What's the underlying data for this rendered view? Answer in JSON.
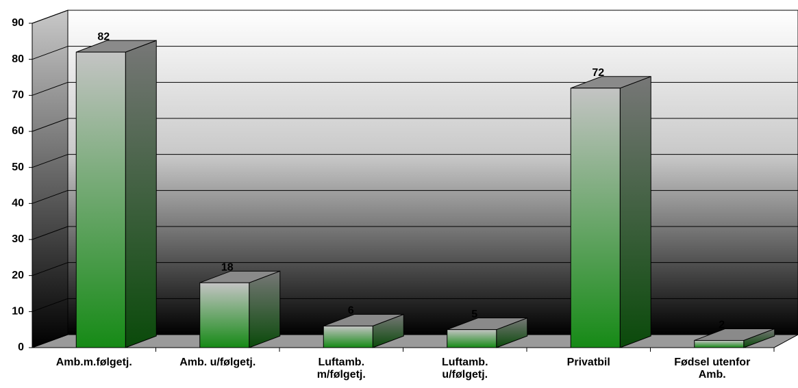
{
  "chart_data": {
    "type": "bar3d",
    "categories": [
      "Amb.m.følgetj.",
      "Amb. u/følgetj.",
      "Luftamb.\nm/følgetj.",
      "Luftamb.\nu/følgetj.",
      "Privatbil",
      "Fødsel utenfor\nAmb."
    ],
    "values": [
      82,
      18,
      6,
      5,
      72,
      2
    ],
    "color": "#168a16",
    "ylim": [
      0,
      90
    ],
    "yticks": [
      0,
      10,
      20,
      30,
      40,
      50,
      60,
      70,
      80,
      90
    ],
    "grid": true
  }
}
